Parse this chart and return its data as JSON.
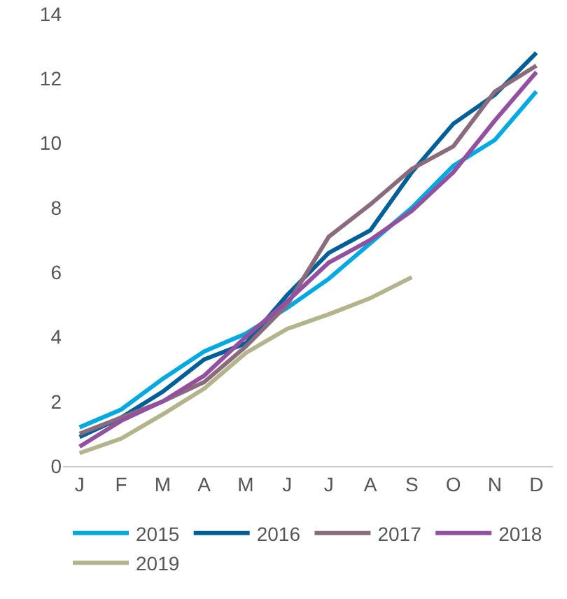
{
  "chart_data": {
    "type": "line",
    "categories": [
      "J",
      "F",
      "M",
      "A",
      "M",
      "J",
      "J",
      "A",
      "S",
      "O",
      "N",
      "D"
    ],
    "series": [
      {
        "name": "2015",
        "color": "#00a9e0",
        "values": [
          1.2,
          1.75,
          2.7,
          3.55,
          4.1,
          4.9,
          5.8,
          6.9,
          8.0,
          9.3,
          10.1,
          11.6
        ]
      },
      {
        "name": "2016",
        "color": "#005f96",
        "values": [
          0.9,
          1.5,
          2.3,
          3.3,
          3.8,
          5.3,
          6.6,
          7.3,
          9.1,
          10.6,
          11.5,
          12.8
        ]
      },
      {
        "name": "2017",
        "color": "#8a6b7e",
        "values": [
          1.0,
          1.5,
          2.0,
          2.6,
          3.7,
          5.0,
          7.1,
          8.1,
          9.2,
          9.9,
          11.6,
          12.4
        ]
      },
      {
        "name": "2018",
        "color": "#9450a0",
        "values": [
          0.6,
          1.4,
          2.0,
          2.8,
          4.0,
          5.1,
          6.3,
          7.0,
          7.9,
          9.1,
          10.7,
          12.2
        ]
      },
      {
        "name": "2019",
        "color": "#b3b38c",
        "values": [
          0.4,
          0.85,
          1.6,
          2.4,
          3.5,
          4.25,
          4.7,
          5.2,
          5.85,
          null,
          null,
          null
        ]
      }
    ],
    "ylim": [
      0,
      14
    ],
    "yticks": [
      0,
      2,
      4,
      6,
      8,
      10,
      12,
      14
    ],
    "grid": false,
    "legend": "bottom",
    "marker": "none",
    "line_style": "solid"
  }
}
